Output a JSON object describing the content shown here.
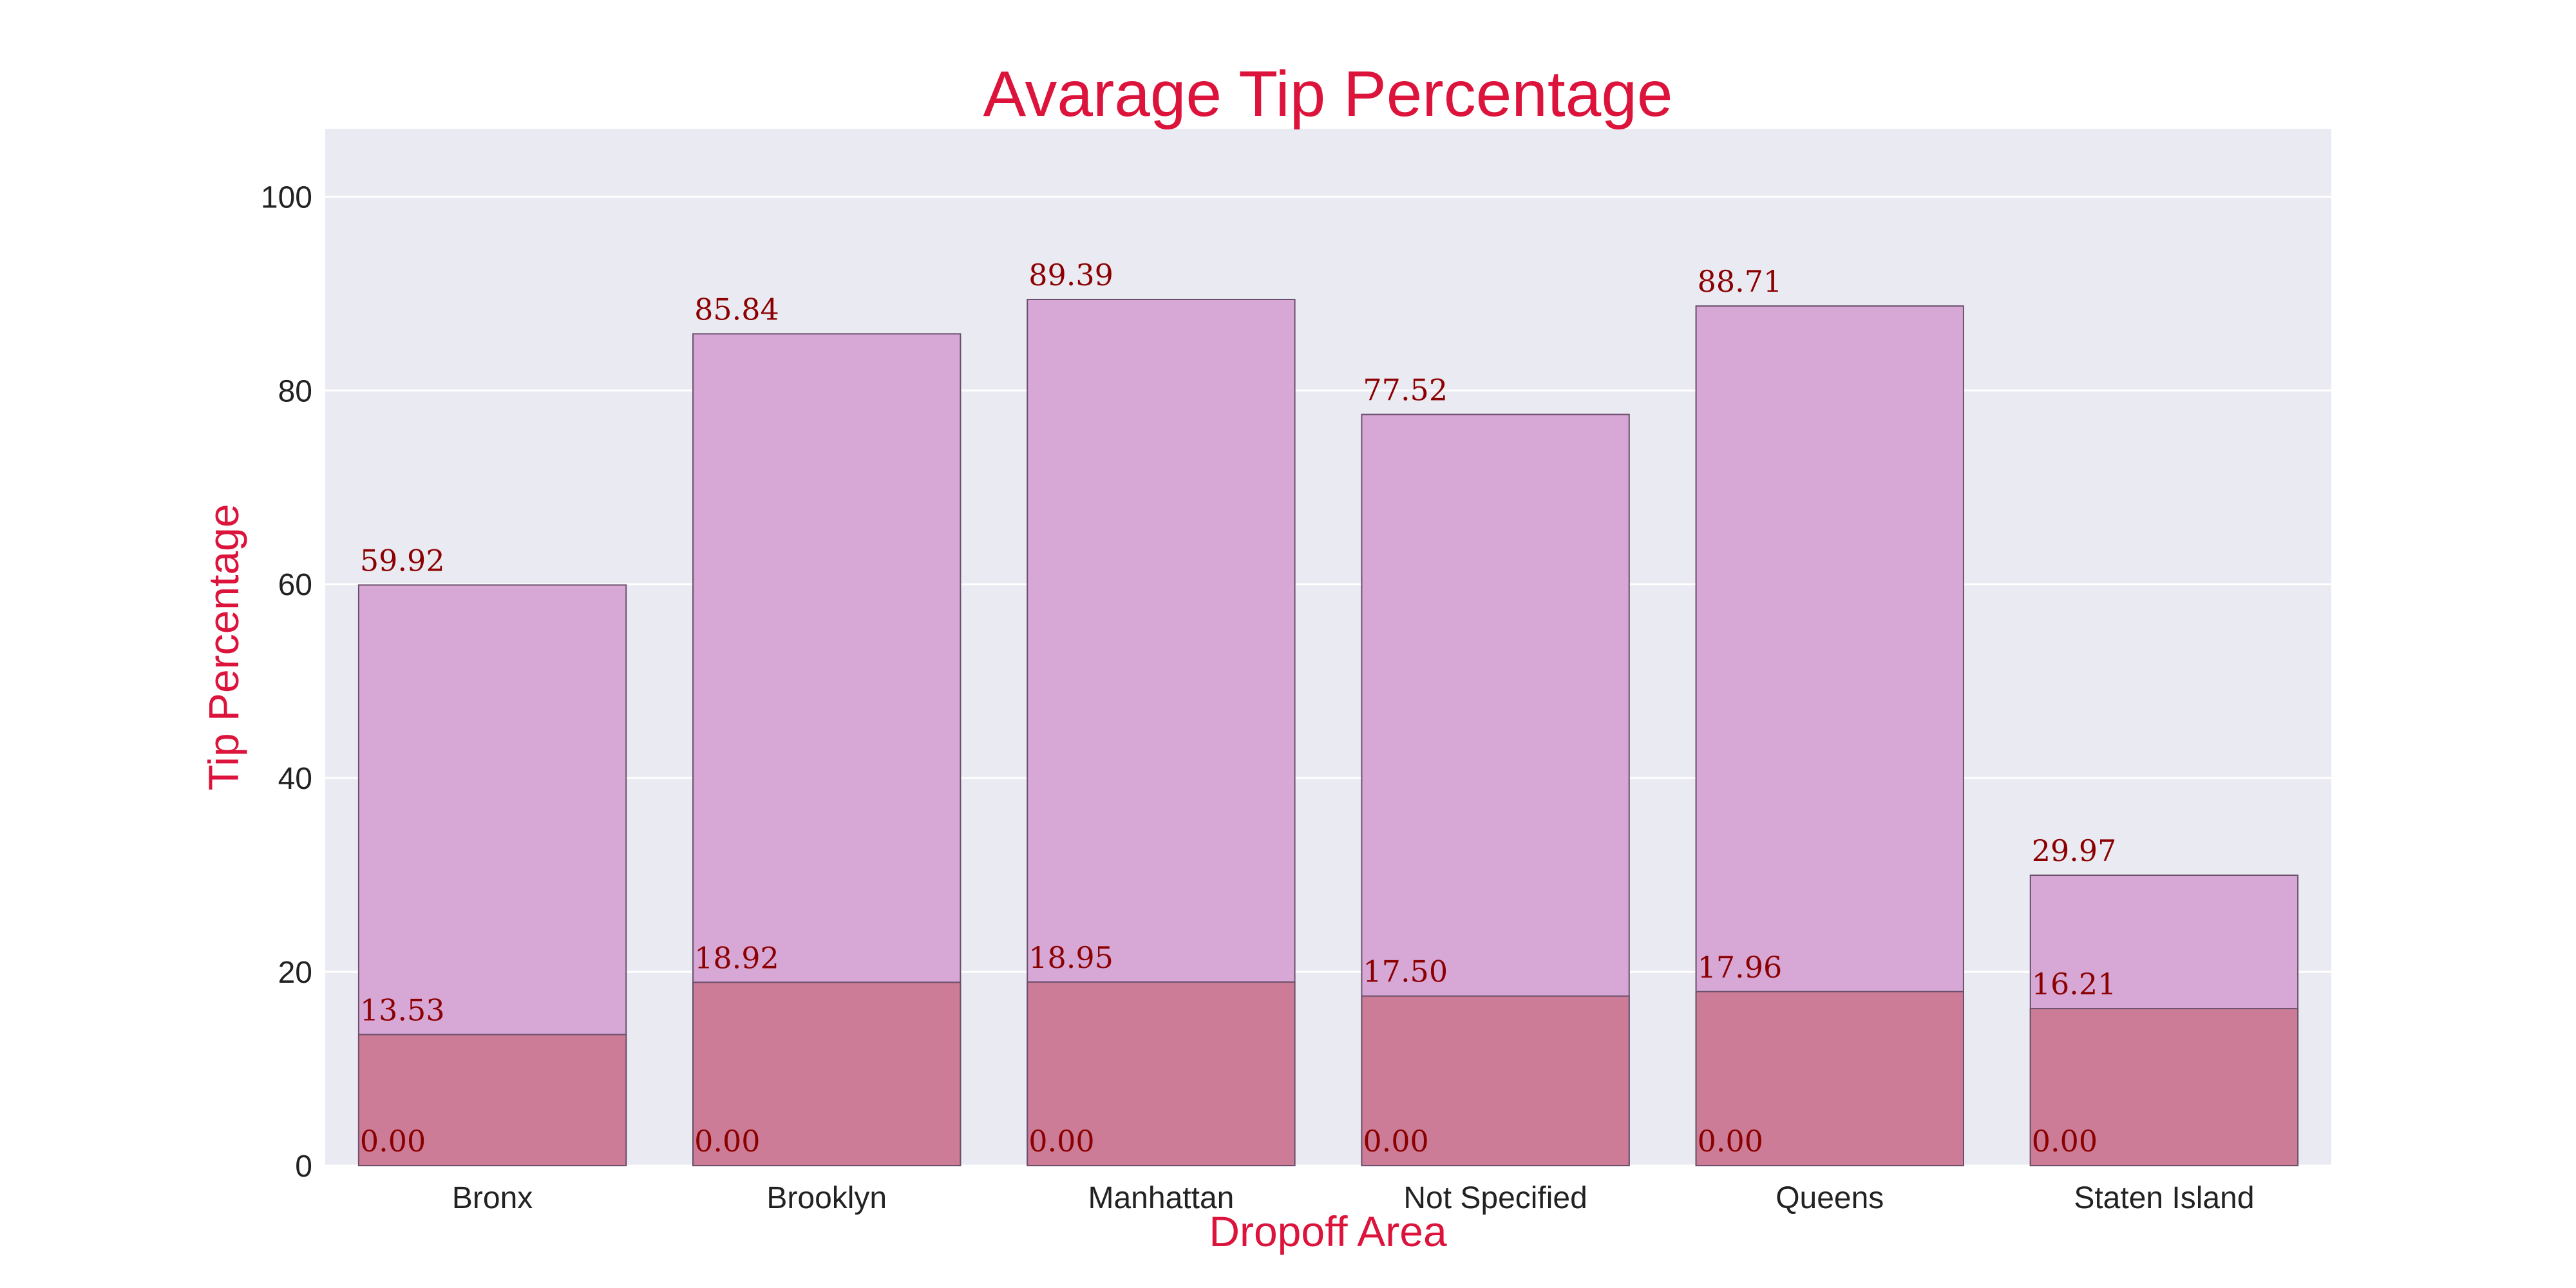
{
  "chart_data": {
    "type": "bar",
    "title": "Avarage Tip Percentage",
    "xlabel": "Dropoff Area",
    "ylabel": "Tip Percentage",
    "ylim": [
      0,
      107
    ],
    "yticks": [
      0,
      20,
      40,
      60,
      80,
      100
    ],
    "grid": true,
    "categories": [
      "Bronx",
      "Brooklyn",
      "Manhattan",
      "Not Specified",
      "Queens",
      "Staten Island"
    ],
    "series": [
      {
        "values": [
          59.92,
          85.84,
          89.39,
          77.52,
          88.71,
          29.97
        ],
        "labels": [
          "59.92",
          "85.84",
          "89.39",
          "77.52",
          "88.71",
          "29.97"
        ],
        "color": "#d7a7d6"
      },
      {
        "values": [
          13.53,
          18.92,
          18.95,
          17.5,
          17.96,
          16.21
        ],
        "labels": [
          "13.53",
          "18.92",
          "18.95",
          "17.50",
          "17.96",
          "16.21"
        ],
        "color": "#cc7c96"
      },
      {
        "values": [
          0,
          0,
          0,
          0,
          0,
          0
        ],
        "labels": [
          "0.00",
          "0.00",
          "0.00",
          "0.00",
          "0.00",
          "0.00"
        ],
        "color": "#cc7c96"
      }
    ],
    "colors": {
      "plot_background": "#eaeaf2",
      "grid": "#ffffff",
      "title": "#dc143c",
      "bar_label": "#8b0000",
      "bar_edge": "#6b4f6b"
    }
  }
}
